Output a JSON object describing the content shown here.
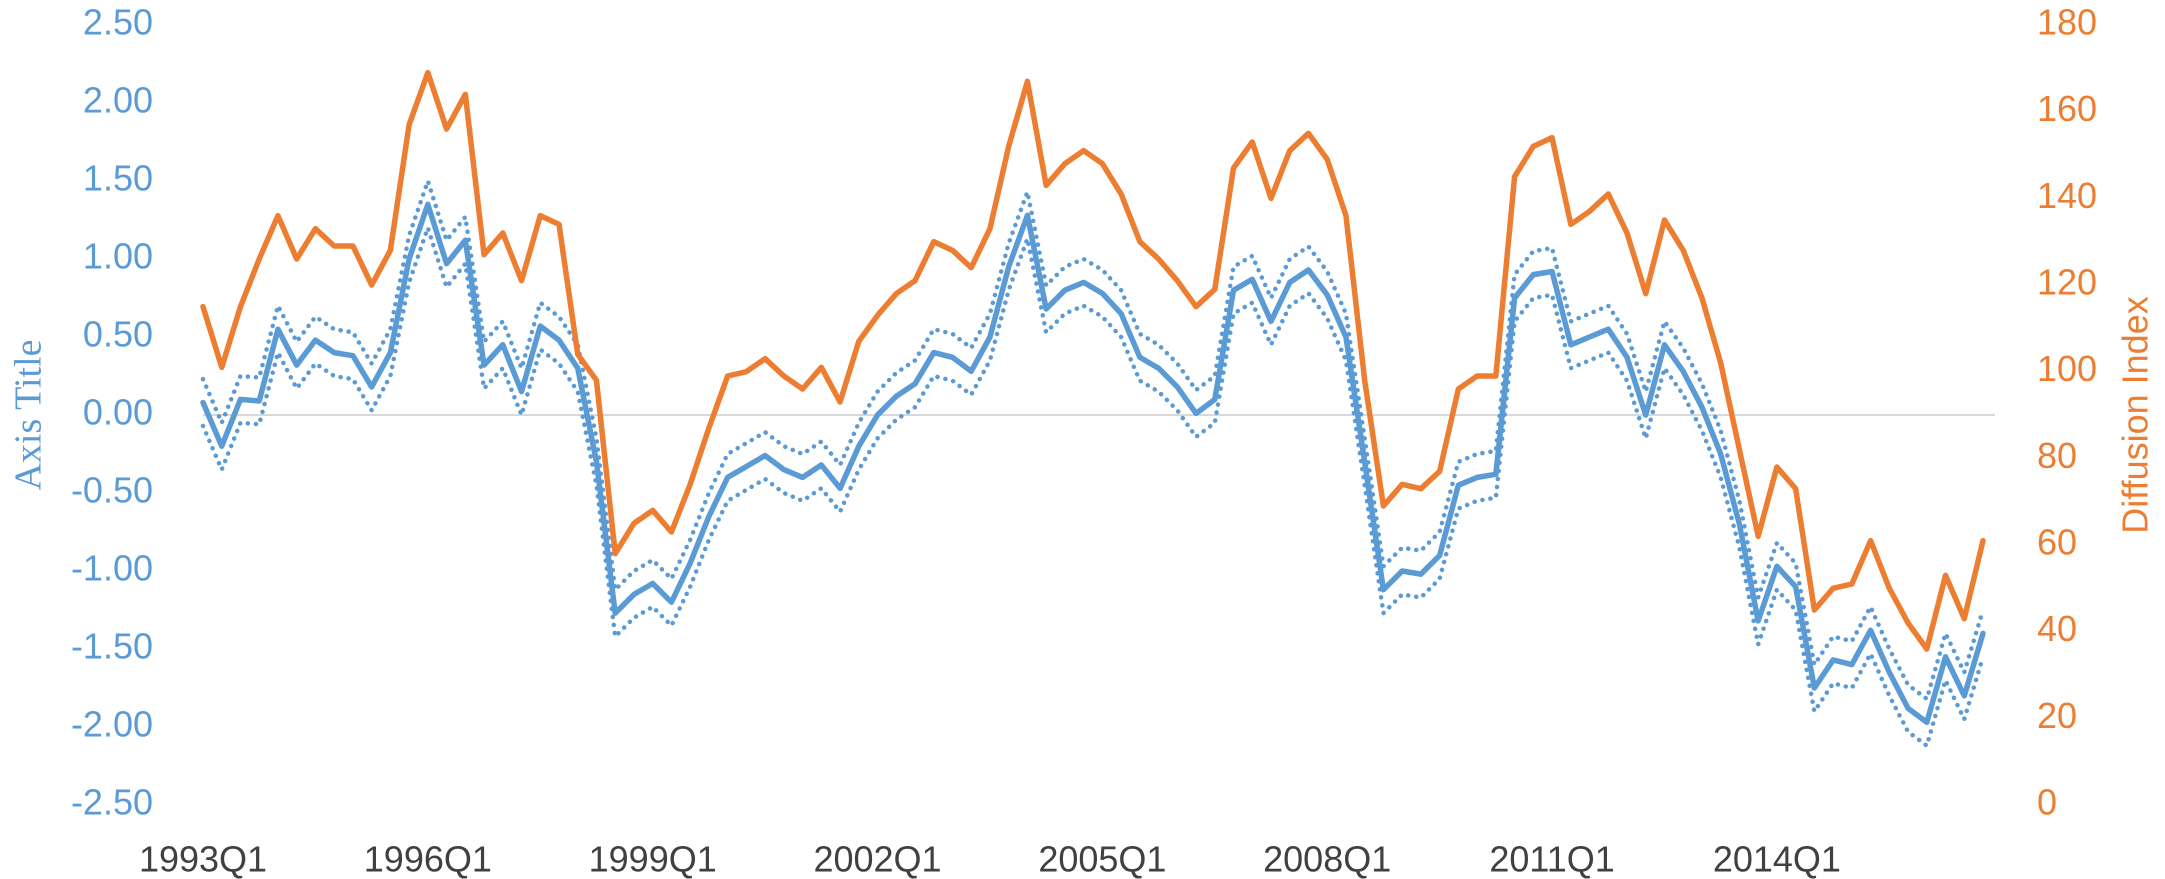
{
  "chart_data": {
    "type": "line",
    "y_label": "Axis Title",
    "y2_label": "Diffusion Index",
    "categories": [
      "1993Q1",
      null,
      null,
      null,
      null,
      null,
      null,
      null,
      null,
      null,
      null,
      null,
      "1996Q1",
      null,
      null,
      null,
      null,
      null,
      null,
      null,
      null,
      null,
      null,
      null,
      "1999Q1",
      null,
      null,
      null,
      null,
      null,
      null,
      null,
      null,
      null,
      null,
      null,
      "2002Q1",
      null,
      null,
      null,
      null,
      null,
      null,
      null,
      null,
      null,
      null,
      null,
      "2005Q1",
      null,
      null,
      null,
      null,
      null,
      null,
      null,
      null,
      null,
      null,
      null,
      "2008Q1",
      null,
      null,
      null,
      null,
      null,
      null,
      null,
      null,
      null,
      null,
      null,
      "2011Q1",
      null,
      null,
      null,
      null,
      null,
      null,
      null,
      null,
      null,
      null,
      null,
      "2014Q1",
      null,
      null,
      null,
      null,
      null,
      null,
      null,
      null,
      null,
      null,
      null
    ],
    "ylim": [
      -2.5,
      2.5
    ],
    "yticks": [
      {
        "value": 2.5,
        "label": "2.50"
      },
      {
        "value": 2,
        "label": "2.00"
      },
      {
        "value": 1.5,
        "label": "1.50"
      },
      {
        "value": 1,
        "label": "1.00"
      },
      {
        "value": 0.5,
        "label": "0.50"
      },
      {
        "value": 0,
        "label": "0.00"
      },
      {
        "value": -0.5,
        "label": "-0.50"
      },
      {
        "value": -1,
        "label": "-1.00"
      },
      {
        "value": -1.5,
        "label": "-1.50"
      },
      {
        "value": -2,
        "label": "-2.00"
      },
      {
        "value": -2.5,
        "label": "-2.50"
      }
    ],
    "y2lim": [
      0,
      180
    ],
    "y2ticks": [
      0,
      20,
      40,
      60,
      80,
      100,
      120,
      140,
      160,
      180
    ],
    "y_color": "#5b9bd5",
    "y2_color": "#ed7d31",
    "zero_line": true,
    "series": [
      {
        "color": "#5b9bd5",
        "linestyle": "solid",
        "axis": "y",
        "values": [
          0.08,
          -0.2,
          0.1,
          0.09,
          0.55,
          0.32,
          0.48,
          0.4,
          0.38,
          0.18,
          0.4,
          1.0,
          1.35,
          0.97,
          1.12,
          0.32,
          0.45,
          0.15,
          0.57,
          0.48,
          0.3,
          -0.3,
          -1.27,
          -1.15,
          -1.08,
          -1.2,
          -0.95,
          -0.65,
          -0.4,
          -0.33,
          -0.26,
          -0.35,
          -0.4,
          -0.32,
          -0.47,
          -0.2,
          0.0,
          0.12,
          0.2,
          0.4,
          0.37,
          0.28,
          0.5,
          0.95,
          1.28,
          0.68,
          0.8,
          0.85,
          0.78,
          0.65,
          0.37,
          0.3,
          0.18,
          0.01,
          0.1,
          0.8,
          0.87,
          0.6,
          0.85,
          0.93,
          0.77,
          0.5,
          -0.3,
          -1.12,
          -1.0,
          -1.02,
          -0.9,
          -0.45,
          -0.4,
          -0.38,
          0.75,
          0.9,
          0.92,
          0.45,
          0.5,
          0.55,
          0.37,
          0.0,
          0.45,
          0.28,
          0.05,
          -0.25,
          -0.7,
          -1.32,
          -0.97,
          -1.1,
          -1.75,
          -1.57,
          -1.6,
          -1.38,
          -1.65,
          -1.88,
          -1.97,
          -1.55,
          -1.8,
          -1.4
        ]
      },
      {
        "color": "#5b9bd5",
        "linestyle": "dotted",
        "axis": "y",
        "values": [
          0.23,
          -0.05,
          0.25,
          0.24,
          0.7,
          0.47,
          0.63,
          0.55,
          0.53,
          0.33,
          0.55,
          1.15,
          1.5,
          1.12,
          1.27,
          0.47,
          0.6,
          0.3,
          0.72,
          0.63,
          0.45,
          -0.15,
          -1.12,
          -1.0,
          -0.93,
          -1.05,
          -0.8,
          -0.5,
          -0.25,
          -0.18,
          -0.11,
          -0.2,
          -0.25,
          -0.17,
          -0.32,
          -0.05,
          0.15,
          0.27,
          0.35,
          0.55,
          0.52,
          0.43,
          0.65,
          1.1,
          1.43,
          0.83,
          0.95,
          1.0,
          0.93,
          0.8,
          0.52,
          0.45,
          0.33,
          0.16,
          0.25,
          0.95,
          1.02,
          0.75,
          1.0,
          1.08,
          0.92,
          0.65,
          -0.15,
          -0.97,
          -0.85,
          -0.87,
          -0.75,
          -0.3,
          -0.25,
          -0.23,
          0.9,
          1.05,
          1.07,
          0.6,
          0.65,
          0.7,
          0.52,
          0.15,
          0.6,
          0.43,
          0.2,
          -0.1,
          -0.55,
          -1.17,
          -0.82,
          -0.95,
          -1.6,
          -1.42,
          -1.45,
          -1.23,
          -1.5,
          -1.73,
          -1.82,
          -1.4,
          -1.65,
          -1.25
        ]
      },
      {
        "color": "#5b9bd5",
        "linestyle": "dotted",
        "axis": "y",
        "values": [
          -0.07,
          -0.35,
          -0.05,
          -0.06,
          0.4,
          0.17,
          0.33,
          0.25,
          0.23,
          0.03,
          0.25,
          0.85,
          1.2,
          0.82,
          0.97,
          0.17,
          0.3,
          0.0,
          0.42,
          0.33,
          0.15,
          -0.45,
          -1.42,
          -1.3,
          -1.23,
          -1.35,
          -1.1,
          -0.8,
          -0.55,
          -0.48,
          -0.41,
          -0.5,
          -0.55,
          -0.47,
          -0.62,
          -0.35,
          -0.15,
          -0.03,
          0.05,
          0.25,
          0.22,
          0.13,
          0.35,
          0.8,
          1.13,
          0.53,
          0.65,
          0.7,
          0.63,
          0.5,
          0.22,
          0.15,
          0.03,
          -0.14,
          -0.05,
          0.65,
          0.72,
          0.45,
          0.7,
          0.78,
          0.62,
          0.35,
          -0.45,
          -1.27,
          -1.15,
          -1.17,
          -1.05,
          -0.6,
          -0.55,
          -0.53,
          0.6,
          0.75,
          0.77,
          0.3,
          0.35,
          0.4,
          0.22,
          -0.15,
          0.3,
          0.13,
          -0.1,
          -0.4,
          -0.85,
          -1.47,
          -1.12,
          -1.25,
          -1.9,
          -1.72,
          -1.75,
          -1.53,
          -1.8,
          -2.03,
          -2.12,
          -1.7,
          -1.95,
          -1.55
        ]
      },
      {
        "color": "#ed7d31",
        "linestyle": "solid",
        "axis": "y2",
        "values": [
          115,
          101,
          115,
          126,
          136,
          126,
          133,
          129,
          129,
          120,
          128,
          157,
          169,
          156,
          164,
          127,
          132,
          121,
          136,
          134,
          104,
          98,
          58,
          65,
          68,
          63,
          74,
          87,
          99,
          100,
          103,
          99,
          96,
          101,
          93,
          107,
          113,
          118,
          121,
          130,
          128,
          124,
          133,
          152,
          167,
          143,
          148,
          151,
          148,
          141,
          130,
          126,
          121,
          115,
          119,
          147,
          153,
          140,
          151,
          155,
          149,
          136,
          98,
          69,
          74,
          73,
          77,
          96,
          99,
          99,
          145,
          152,
          154,
          134,
          137,
          141,
          132,
          118,
          135,
          128,
          117,
          102,
          82,
          62,
          78,
          73,
          45,
          50,
          51,
          61,
          50,
          42,
          36,
          53,
          43,
          61
        ]
      }
    ]
  }
}
